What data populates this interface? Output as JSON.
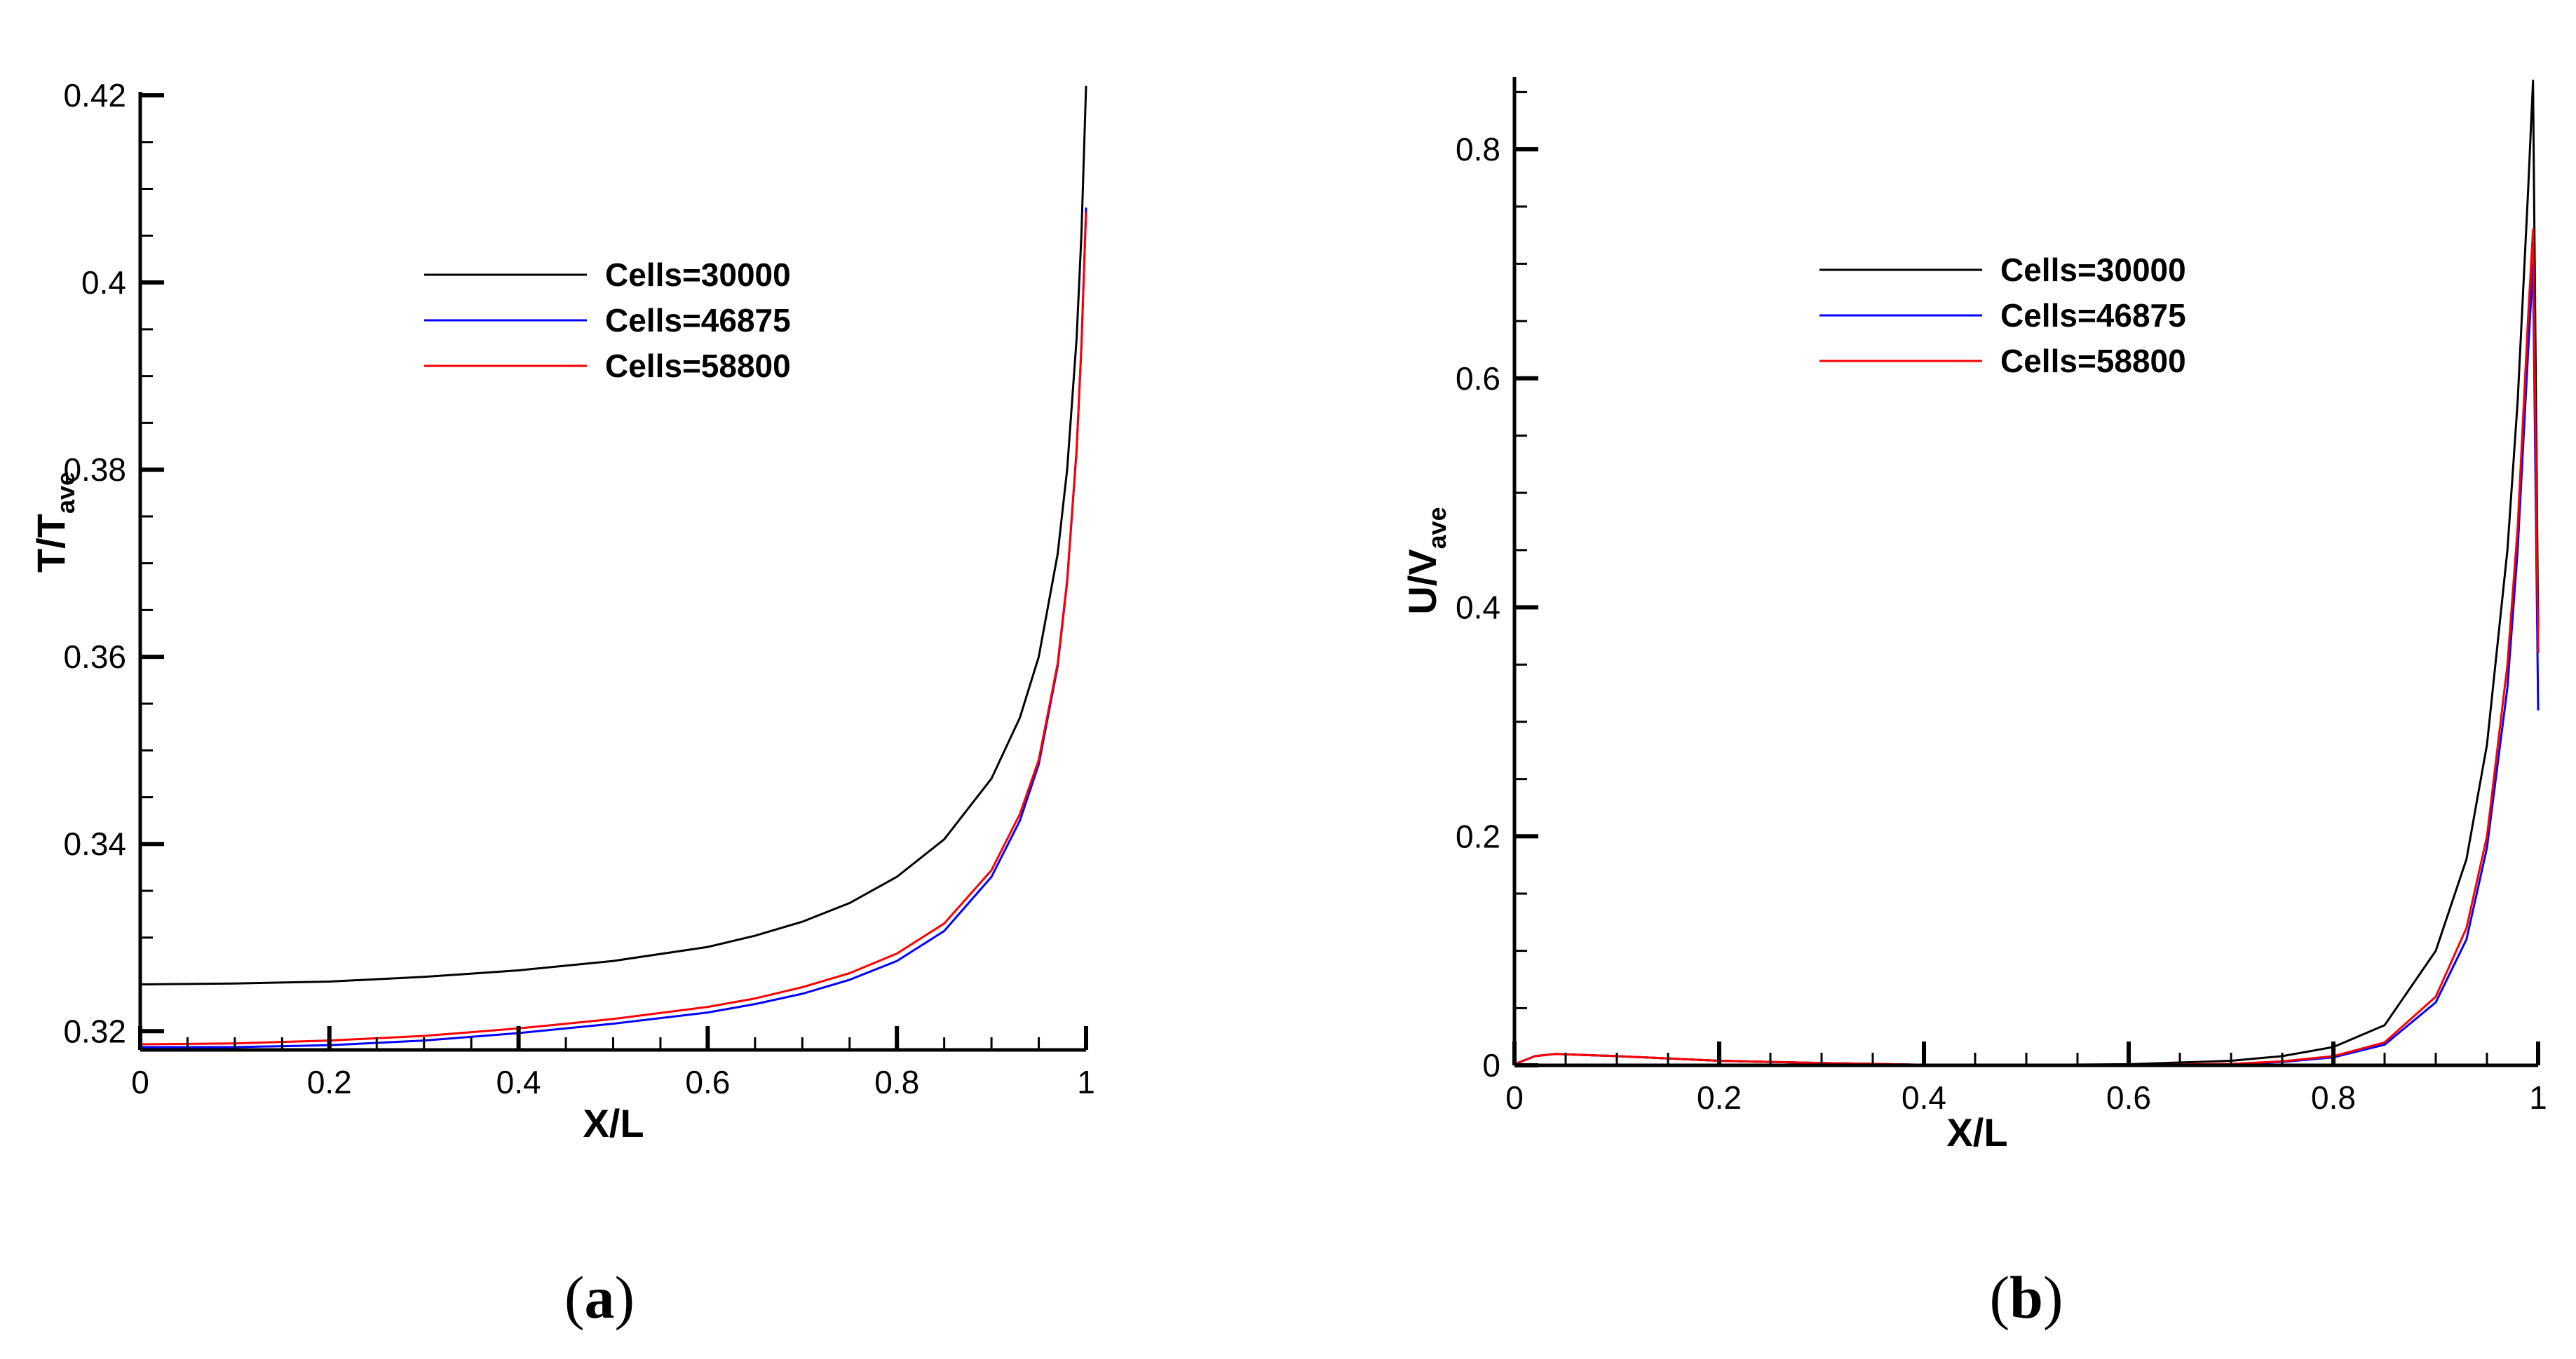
{
  "chart_data": [
    {
      "type": "line",
      "panel": "a",
      "xlabel": "X/L",
      "ylabel_main": "T/T",
      "ylabel_sub": "ave",
      "xlim": [
        0,
        1
      ],
      "ylim": [
        0.318,
        0.42
      ],
      "xticks": [
        0,
        0.2,
        0.4,
        0.6,
        0.8,
        1
      ],
      "xtick_labels": [
        "0",
        "0.2",
        "0.4",
        "0.6",
        "0.8",
        "1"
      ],
      "yticks": [
        0.32,
        0.34,
        0.36,
        0.38,
        0.4,
        0.42
      ],
      "ytick_labels": [
        "0.32",
        "0.34",
        "0.36",
        "0.38",
        "0.4",
        "0.42"
      ],
      "legend_position": "top-center",
      "series": [
        {
          "name": "Cells=30000",
          "color": "#000000",
          "x": [
            0,
            0.1,
            0.2,
            0.3,
            0.4,
            0.5,
            0.6,
            0.65,
            0.7,
            0.75,
            0.8,
            0.85,
            0.9,
            0.93,
            0.95,
            0.97,
            0.98,
            0.99,
            0.995,
            1.0
          ],
          "y": [
            0.325,
            0.3251,
            0.3253,
            0.3258,
            0.3265,
            0.3275,
            0.329,
            0.3302,
            0.3317,
            0.3337,
            0.3365,
            0.3405,
            0.347,
            0.3535,
            0.36,
            0.371,
            0.38,
            0.394,
            0.405,
            0.421
          ]
        },
        {
          "name": "Cells=46875",
          "color": "#0000ff",
          "x": [
            0,
            0.1,
            0.2,
            0.3,
            0.4,
            0.5,
            0.6,
            0.65,
            0.7,
            0.75,
            0.8,
            0.85,
            0.9,
            0.93,
            0.95,
            0.97,
            0.98,
            0.99,
            0.995,
            1.0
          ],
          "y": [
            0.3183,
            0.3183,
            0.3185,
            0.319,
            0.3198,
            0.3208,
            0.322,
            0.3229,
            0.324,
            0.3255,
            0.3275,
            0.3307,
            0.3365,
            0.3425,
            0.3485,
            0.359,
            0.368,
            0.382,
            0.393,
            0.408
          ]
        },
        {
          "name": "Cells=58800",
          "color": "#ff0000",
          "x": [
            0,
            0.1,
            0.2,
            0.3,
            0.4,
            0.5,
            0.6,
            0.65,
            0.7,
            0.75,
            0.8,
            0.85,
            0.9,
            0.93,
            0.95,
            0.97,
            0.98,
            0.99,
            0.995,
            1.0
          ],
          "y": [
            0.3186,
            0.3187,
            0.319,
            0.3195,
            0.3203,
            0.3213,
            0.3226,
            0.3235,
            0.3247,
            0.3262,
            0.3283,
            0.3315,
            0.3372,
            0.3432,
            0.349,
            0.3593,
            0.3682,
            0.3822,
            0.3932,
            0.4075
          ]
        }
      ]
    },
    {
      "type": "line",
      "panel": "b",
      "xlabel": "X/L",
      "ylabel_main": "U/V",
      "ylabel_sub": "ave",
      "xlim": [
        0,
        1
      ],
      "ylim": [
        0,
        0.86
      ],
      "xticks": [
        0,
        0.2,
        0.4,
        0.6,
        0.8,
        1
      ],
      "xtick_labels": [
        "0",
        "0.2",
        "0.4",
        "0.6",
        "0.8",
        "1"
      ],
      "yticks": [
        0,
        0.2,
        0.4,
        0.6,
        0.8
      ],
      "ytick_labels": [
        "0",
        "0.2",
        "0.4",
        "0.6",
        "0.8"
      ],
      "legend_position": "top-center",
      "series": [
        {
          "name": "Cells=30000",
          "color": "#000000",
          "x": [
            0,
            0.02,
            0.04,
            0.1,
            0.2,
            0.3,
            0.4,
            0.5,
            0.6,
            0.7,
            0.75,
            0.8,
            0.85,
            0.9,
            0.93,
            0.95,
            0.97,
            0.98,
            0.99,
            0.995,
            1.0
          ],
          "y": [
            0.001,
            0.008,
            0.01,
            0.008,
            0.004,
            0.002,
            0.0005,
            0.0003,
            0.001,
            0.004,
            0.008,
            0.016,
            0.035,
            0.1,
            0.18,
            0.28,
            0.45,
            0.58,
            0.76,
            0.86,
            0.38
          ]
        },
        {
          "name": "Cells=46875",
          "color": "#0000ff",
          "x": [
            0,
            0.02,
            0.04,
            0.1,
            0.2,
            0.3,
            0.4,
            0.5,
            0.6,
            0.7,
            0.75,
            0.8,
            0.85,
            0.9,
            0.93,
            0.95,
            0.97,
            0.98,
            0.99,
            0.995,
            1.0
          ],
          "y": [
            0.001,
            0.008,
            0.01,
            0.008,
            0.004,
            0.002,
            0.0005,
            0.0002,
            0.0003,
            0.001,
            0.003,
            0.007,
            0.018,
            0.055,
            0.11,
            0.19,
            0.33,
            0.45,
            0.62,
            0.7,
            0.31
          ]
        },
        {
          "name": "Cells=58800",
          "color": "#ff0000",
          "x": [
            0,
            0.02,
            0.04,
            0.1,
            0.2,
            0.3,
            0.4,
            0.5,
            0.6,
            0.7,
            0.75,
            0.8,
            0.85,
            0.9,
            0.93,
            0.95,
            0.97,
            0.98,
            0.99,
            0.995,
            1.0
          ],
          "y": [
            0.001,
            0.008,
            0.01,
            0.008,
            0.004,
            0.002,
            0.0005,
            0.0002,
            0.0003,
            0.0012,
            0.0035,
            0.008,
            0.02,
            0.06,
            0.12,
            0.2,
            0.35,
            0.47,
            0.65,
            0.73,
            0.36
          ]
        }
      ]
    }
  ],
  "panel_labels": [
    {
      "open": "(",
      "letter": "a",
      "close": ")"
    },
    {
      "open": "(",
      "letter": "b",
      "close": ")"
    }
  ]
}
